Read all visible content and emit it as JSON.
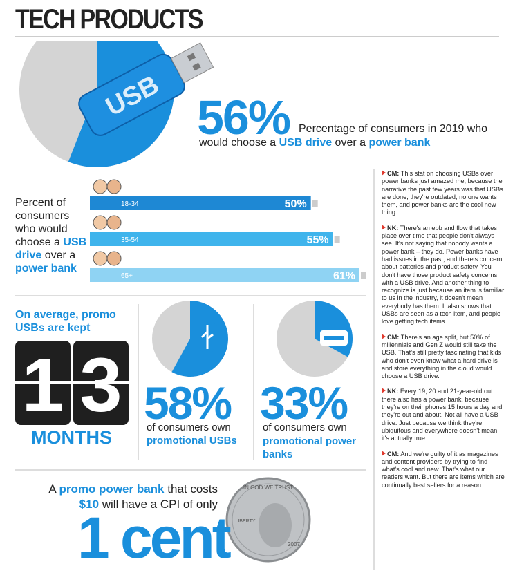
{
  "header": {
    "title": "TECH PRODUCTS"
  },
  "pie_colors": {
    "filled": "#1a8fdc",
    "rest": "#d4d4d4"
  },
  "hero": {
    "graphic_label": "USB",
    "value": 56,
    "value_label": "56%",
    "caption_parts": [
      "Percentage of consumers in 2019 who",
      "would choose a ",
      "USB drive",
      " over a ",
      "power bank"
    ]
  },
  "age": {
    "label_parts": [
      "Percent of consumers who would choose a ",
      "USB drive",
      " over a ",
      "power bank"
    ],
    "categories": [
      "18-34",
      "35-54",
      "65+"
    ],
    "values": [
      50,
      55,
      61
    ],
    "value_labels": [
      "50%",
      "55%",
      "61%"
    ],
    "colors": [
      "#1e88d4",
      "#3fb4ec",
      "#8fd3f3"
    ]
  },
  "kept": {
    "heading": "On average, promo USBs are kept",
    "digits": [
      "1",
      "3"
    ],
    "unit": "MONTHS"
  },
  "own": [
    {
      "value": 58,
      "value_label": "58%",
      "caption": "of consumers own",
      "highlight": "promotional USBs"
    },
    {
      "value": 33,
      "value_label": "33%",
      "caption": "of consumers own",
      "highlight": "promotional power banks"
    }
  ],
  "cpi": {
    "parts": [
      "A ",
      "promo power bank",
      " that costs ",
      "$10",
      " will have a CPI of only"
    ],
    "amount": "1 cent"
  },
  "coin": {
    "motto": "IN GOD WE TRUST",
    "liberty": "LIBERTY",
    "year": "2007"
  },
  "interview": [
    {
      "speaker": "CM:",
      "text": "This stat on choosing USBs over power banks just amazed me, because the narrative the past few years was that USBs are done, they're outdated, no one wants them, and power banks are the cool new thing."
    },
    {
      "speaker": "NK:",
      "text": "There's an ebb and flow that takes place over time that people don't always see. It's not saying that nobody wants a power bank – they do. Power banks have had issues in the past, and there's concern about batteries and product safety. You don't have those product safety concerns with a USB drive. And another thing to recognize is just because an item is familiar to us in the industry, it doesn't mean everybody has them. It also shows that USBs are seen as a tech item, and people love getting tech items."
    },
    {
      "speaker": "CM:",
      "text": "There's an age split, but 50% of millennials and Gen Z would still take the USB. That's still pretty fascinating that kids who don't even know what a hard drive is and store everything in the cloud would choose a USB drive."
    },
    {
      "speaker": "NK:",
      "text": "Every 19, 20 and 21-year-old out there also has a power bank, because they're on their phones 15 hours a day and they're out and about. Not all have a USB drive. Just because we think they're ubiquitous and everywhere doesn't mean it's actually true."
    },
    {
      "speaker": "CM:",
      "text": "And we're guilty of it as magazines and content providers by trying to find what's cool and new. That's what our readers want. But there are items which are continually best sellers for a reason."
    }
  ]
}
